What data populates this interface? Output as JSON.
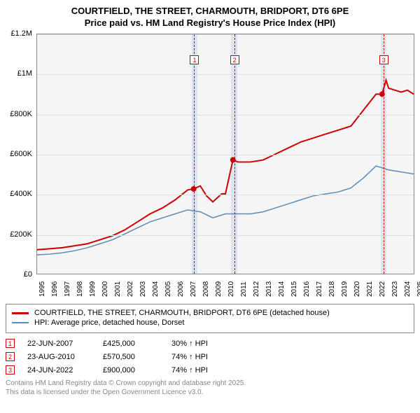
{
  "title": "COURTFIELD, THE STREET, CHARMOUTH, BRIDPORT, DT6 6PE",
  "subtitle": "Price paid vs. HM Land Registry's House Price Index (HPI)",
  "chart": {
    "type": "line",
    "background_color": "#f5f5f5",
    "grid_color": "#dddddd",
    "border_color": "#888888",
    "y_axis": {
      "min": 0,
      "max": 1200000,
      "step": 200000,
      "ticks": [
        "£0",
        "£200K",
        "£400K",
        "£600K",
        "£800K",
        "£1M",
        "£1.2M"
      ],
      "fontsize": 11
    },
    "x_axis": {
      "min": 1995,
      "max": 2025,
      "ticks": [
        "1995",
        "1996",
        "1997",
        "1998",
        "1999",
        "2000",
        "2001",
        "2002",
        "2003",
        "2004",
        "2005",
        "2006",
        "2007",
        "2008",
        "2009",
        "2010",
        "2011",
        "2012",
        "2013",
        "2014",
        "2015",
        "2016",
        "2017",
        "2018",
        "2019",
        "2020",
        "2021",
        "2022",
        "2023",
        "2024",
        "2025"
      ],
      "fontsize": 10
    },
    "shaded_bands": [
      {
        "x_start": 2007.3,
        "x_end": 2007.7,
        "color": "rgba(150,180,220,0.25)"
      },
      {
        "x_start": 2010.4,
        "x_end": 2010.9,
        "color": "rgba(150,180,220,0.25)"
      },
      {
        "x_start": 2022.3,
        "x_end": 2022.7,
        "color": "rgba(150,180,220,0.25)"
      }
    ],
    "event_lines": [
      {
        "x": 2007.47,
        "label": "1",
        "dash_color": "#cc0000"
      },
      {
        "x": 2010.65,
        "label": "2",
        "dash_color": "#cc0000"
      },
      {
        "x": 2022.48,
        "label": "3",
        "dash_color": "#cc0000"
      }
    ],
    "series": {
      "price_paid": {
        "color": "#cc0000",
        "line_width": 2,
        "legend": "COURTFIELD, THE STREET, CHARMOUTH, BRIDPORT, DT6 6PE (detached house)",
        "values": [
          [
            1995,
            120000
          ],
          [
            1996,
            125000
          ],
          [
            1997,
            130000
          ],
          [
            1998,
            140000
          ],
          [
            1999,
            150000
          ],
          [
            2000,
            170000
          ],
          [
            2001,
            190000
          ],
          [
            2002,
            220000
          ],
          [
            2003,
            260000
          ],
          [
            2004,
            300000
          ],
          [
            2005,
            330000
          ],
          [
            2006,
            370000
          ],
          [
            2007,
            420000
          ],
          [
            2007.47,
            425000
          ],
          [
            2008,
            440000
          ],
          [
            2008.5,
            390000
          ],
          [
            2009,
            360000
          ],
          [
            2009.7,
            400000
          ],
          [
            2010,
            400000
          ],
          [
            2010.6,
            570500
          ],
          [
            2011,
            560000
          ],
          [
            2012,
            560000
          ],
          [
            2013,
            570000
          ],
          [
            2014,
            600000
          ],
          [
            2015,
            630000
          ],
          [
            2016,
            660000
          ],
          [
            2017,
            680000
          ],
          [
            2018,
            700000
          ],
          [
            2019,
            720000
          ],
          [
            2020,
            740000
          ],
          [
            2021,
            820000
          ],
          [
            2022,
            900000
          ],
          [
            2022.48,
            900000
          ],
          [
            2022.8,
            970000
          ],
          [
            2023,
            930000
          ],
          [
            2024,
            910000
          ],
          [
            2024.5,
            920000
          ],
          [
            2025,
            900000
          ]
        ],
        "markers": [
          [
            2007.47,
            425000
          ],
          [
            2010.6,
            570500
          ],
          [
            2022.48,
            900000
          ]
        ],
        "marker_color": "#cc0000",
        "marker_size": 4
      },
      "hpi": {
        "color": "#5b8bb5",
        "line_width": 1.5,
        "legend": "HPI: Average price, detached house, Dorset",
        "values": [
          [
            1995,
            95000
          ],
          [
            1996,
            98000
          ],
          [
            1997,
            105000
          ],
          [
            1998,
            115000
          ],
          [
            1999,
            130000
          ],
          [
            2000,
            150000
          ],
          [
            2001,
            170000
          ],
          [
            2002,
            200000
          ],
          [
            2003,
            230000
          ],
          [
            2004,
            260000
          ],
          [
            2005,
            280000
          ],
          [
            2006,
            300000
          ],
          [
            2007,
            320000
          ],
          [
            2008,
            310000
          ],
          [
            2009,
            280000
          ],
          [
            2010,
            300000
          ],
          [
            2011,
            300000
          ],
          [
            2012,
            300000
          ],
          [
            2013,
            310000
          ],
          [
            2014,
            330000
          ],
          [
            2015,
            350000
          ],
          [
            2016,
            370000
          ],
          [
            2017,
            390000
          ],
          [
            2018,
            400000
          ],
          [
            2019,
            410000
          ],
          [
            2020,
            430000
          ],
          [
            2021,
            480000
          ],
          [
            2022,
            540000
          ],
          [
            2023,
            520000
          ],
          [
            2024,
            510000
          ],
          [
            2025,
            500000
          ]
        ]
      }
    }
  },
  "annotations": [
    {
      "num": "1",
      "date": "22-JUN-2007",
      "price": "£425,000",
      "diff": "30% ↑ HPI"
    },
    {
      "num": "2",
      "date": "23-AUG-2010",
      "price": "£570,500",
      "diff": "74% ↑ HPI"
    },
    {
      "num": "3",
      "date": "24-JUN-2022",
      "price": "£900,000",
      "diff": "74% ↑ HPI"
    }
  ],
  "footnote": {
    "line1": "Contains HM Land Registry data © Crown copyright and database right 2025.",
    "line2": "This data is licensed under the Open Government Licence v3.0."
  },
  "legend": {
    "box_border": "#888888"
  }
}
